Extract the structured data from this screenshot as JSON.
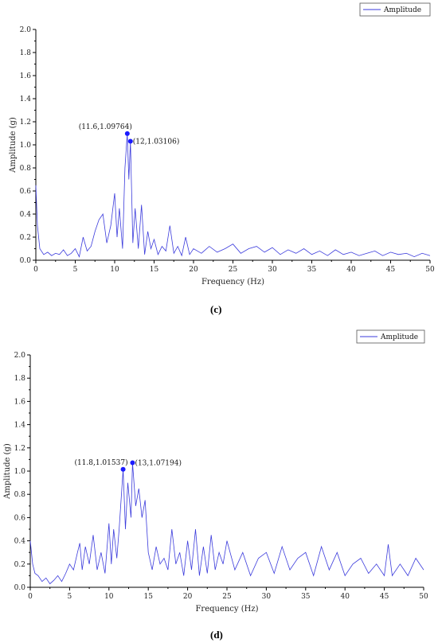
{
  "panel_labels": [
    "(c)",
    "(d)"
  ],
  "chart_data": [
    {
      "type": "line",
      "panel": "(c)",
      "title": "",
      "xlabel": "Frequency (Hz)",
      "ylabel": "Amplitude (g)",
      "xlim": [
        0,
        50
      ],
      "ylim": [
        0,
        2.0
      ],
      "xticks": [
        0,
        5,
        10,
        15,
        20,
        25,
        30,
        35,
        40,
        45,
        50
      ],
      "yticks": [
        0.0,
        0.2,
        0.4,
        0.6,
        0.8,
        1.0,
        1.2,
        1.4,
        1.6,
        1.8,
        2.0
      ],
      "xtick_labels": [
        "0",
        "5",
        "10",
        "15",
        "20",
        "25",
        "30",
        "35",
        "40",
        "45",
        "50"
      ],
      "ytick_labels": [
        "0.0",
        "0.2",
        "0.4",
        "0.6",
        "0.8",
        "1.0",
        "1.2",
        "1.4",
        "1.6",
        "1.8",
        "2.0"
      ],
      "grid": false,
      "legend": "top-right",
      "line_color": "#3b3bdc",
      "series": [
        {
          "name": "Amplitude",
          "x": [
            0,
            0.2,
            0.5,
            1,
            1.5,
            2,
            2.5,
            3,
            3.5,
            4,
            4.5,
            5,
            5.5,
            6,
            6.5,
            7,
            7.5,
            8,
            8.5,
            9,
            9.5,
            10,
            10.3,
            10.6,
            11,
            11.3,
            11.6,
            11.8,
            12,
            12.3,
            12.6,
            13,
            13.4,
            13.8,
            14.2,
            14.6,
            15,
            15.5,
            16,
            16.5,
            17,
            17.5,
            18,
            18.5,
            19,
            19.5,
            20,
            21,
            22,
            23,
            24,
            25,
            26,
            27,
            28,
            29,
            30,
            31,
            32,
            33,
            34,
            35,
            36,
            37,
            38,
            39,
            40,
            41,
            42,
            43,
            44,
            45,
            46,
            47,
            48,
            49,
            50
          ],
          "values": [
            0.65,
            0.3,
            0.1,
            0.05,
            0.07,
            0.04,
            0.06,
            0.05,
            0.09,
            0.04,
            0.06,
            0.1,
            0.03,
            0.2,
            0.08,
            0.12,
            0.25,
            0.35,
            0.4,
            0.15,
            0.3,
            0.58,
            0.2,
            0.45,
            0.1,
            0.8,
            1.09764,
            0.7,
            1.03106,
            0.15,
            0.45,
            0.1,
            0.48,
            0.05,
            0.25,
            0.1,
            0.18,
            0.05,
            0.12,
            0.08,
            0.3,
            0.06,
            0.12,
            0.04,
            0.2,
            0.05,
            0.1,
            0.06,
            0.12,
            0.07,
            0.1,
            0.14,
            0.06,
            0.1,
            0.12,
            0.07,
            0.11,
            0.05,
            0.09,
            0.06,
            0.1,
            0.05,
            0.08,
            0.04,
            0.09,
            0.05,
            0.07,
            0.04,
            0.06,
            0.08,
            0.04,
            0.07,
            0.05,
            0.06,
            0.03,
            0.06,
            0.04
          ]
        }
      ],
      "annotations": [
        {
          "x": 11.6,
          "y": 1.09764,
          "label": "(11.6,1.09764)",
          "position": "left"
        },
        {
          "x": 12,
          "y": 1.03106,
          "label": "(12,1.03106)",
          "position": "right"
        }
      ]
    },
    {
      "type": "line",
      "panel": "(d)",
      "title": "",
      "xlabel": "Frequency (Hz)",
      "ylabel": "Amplitude (g)",
      "xlim": [
        0,
        50
      ],
      "ylim": [
        0,
        2.0
      ],
      "xticks": [
        0,
        5,
        10,
        15,
        20,
        25,
        30,
        35,
        40,
        45,
        50
      ],
      "yticks": [
        0.0,
        0.2,
        0.4,
        0.6,
        0.8,
        1.0,
        1.2,
        1.4,
        1.6,
        1.8,
        2.0
      ],
      "xtick_labels": [
        "0",
        "5",
        "10",
        "15",
        "20",
        "25",
        "30",
        "35",
        "40",
        "45",
        "50"
      ],
      "ytick_labels": [
        "0.0",
        "0.2",
        "0.4",
        "0.6",
        "0.8",
        "1.0",
        "1.2",
        "1.4",
        "1.6",
        "1.8",
        "2.0"
      ],
      "grid": false,
      "legend": "top-right",
      "line_color": "#3b3bdc",
      "series": [
        {
          "name": "Amplitude",
          "x": [
            0,
            0.3,
            0.6,
            1,
            1.5,
            2,
            2.5,
            3,
            3.5,
            4,
            4.5,
            5,
            5.5,
            6,
            6.3,
            6.6,
            7,
            7.5,
            8,
            8.5,
            9,
            9.5,
            10,
            10.3,
            10.6,
            11,
            11.3,
            11.8,
            12.1,
            12.4,
            12.8,
            13,
            13.4,
            13.8,
            14.2,
            14.6,
            15,
            15.5,
            16,
            16.5,
            17,
            17.5,
            18,
            18.5,
            19,
            19.5,
            20,
            20.5,
            21,
            21.5,
            22,
            22.5,
            23,
            23.5,
            24,
            24.5,
            25,
            26,
            27,
            28,
            29,
            30,
            31,
            32,
            33,
            34,
            35,
            36,
            37,
            38,
            39,
            40,
            41,
            42,
            43,
            44,
            45,
            45.5,
            46,
            47,
            48,
            49,
            50
          ],
          "values": [
            0.4,
            0.2,
            0.12,
            0.1,
            0.05,
            0.08,
            0.03,
            0.06,
            0.1,
            0.05,
            0.12,
            0.2,
            0.15,
            0.3,
            0.38,
            0.15,
            0.35,
            0.2,
            0.45,
            0.15,
            0.3,
            0.12,
            0.55,
            0.2,
            0.5,
            0.25,
            0.5,
            1.01537,
            0.5,
            0.9,
            0.6,
            1.07194,
            0.7,
            0.85,
            0.6,
            0.75,
            0.3,
            0.15,
            0.35,
            0.2,
            0.25,
            0.15,
            0.5,
            0.2,
            0.3,
            0.1,
            0.4,
            0.15,
            0.5,
            0.1,
            0.35,
            0.12,
            0.45,
            0.15,
            0.3,
            0.2,
            0.4,
            0.15,
            0.3,
            0.1,
            0.25,
            0.3,
            0.12,
            0.35,
            0.15,
            0.25,
            0.3,
            0.1,
            0.35,
            0.15,
            0.3,
            0.1,
            0.2,
            0.25,
            0.12,
            0.2,
            0.1,
            0.37,
            0.1,
            0.2,
            0.1,
            0.25,
            0.15
          ]
        }
      ],
      "annotations": [
        {
          "x": 11.8,
          "y": 1.01537,
          "label": "(11.8,1.01537)",
          "position": "left"
        },
        {
          "x": 13,
          "y": 1.07194,
          "label": "(13,1.07194)",
          "position": "right"
        }
      ]
    }
  ]
}
